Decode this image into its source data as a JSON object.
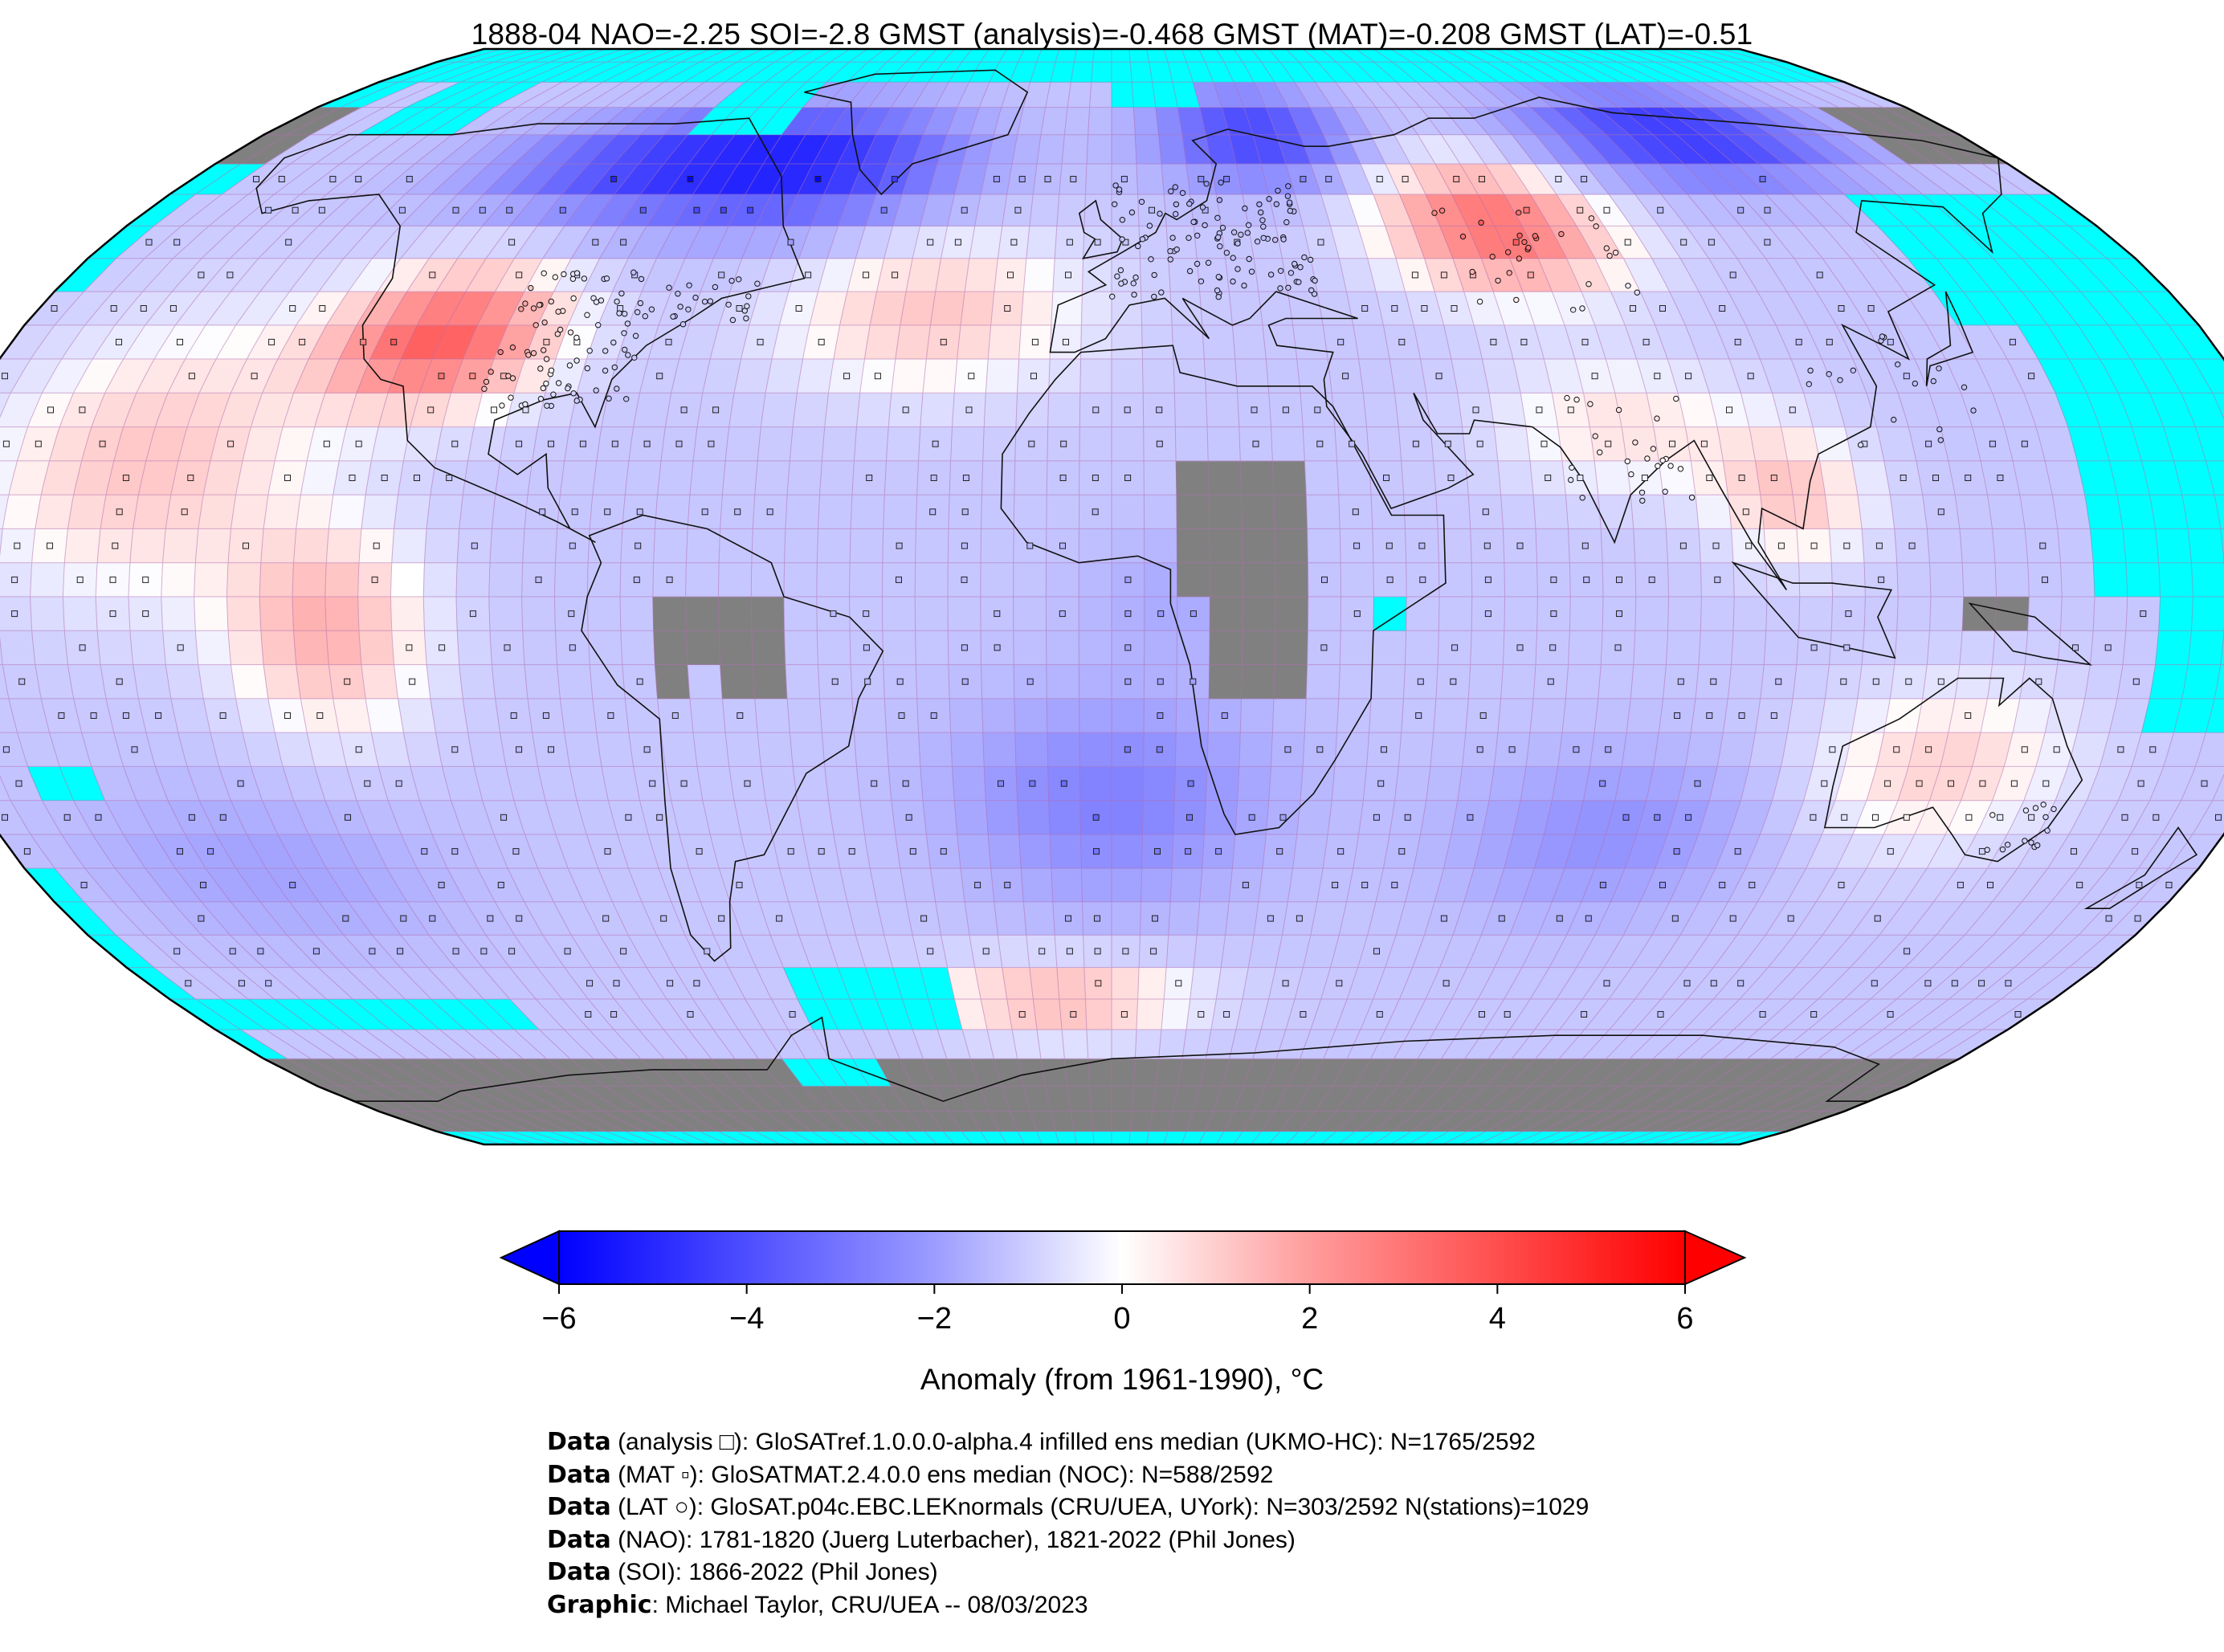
{
  "title": "1888-04 NAO=-2.25 SOI=-2.8 GMST (analysis)=-0.468 GMST (MAT)=-0.208 GMST (LAT)=-0.51",
  "map": {
    "projection": "Robinson",
    "grid_resolution_deg": 5,
    "missing_color": "#00ffff",
    "land_mask_color": "#808080",
    "anomaly_regions": [
      {
        "region": "western North America",
        "anomaly": 3.5
      },
      {
        "region": "central Asia / Siberia",
        "anomaly": 3.0
      },
      {
        "region": "northern Canada / Greenland",
        "anomaly": -4.0
      },
      {
        "region": "northern Siberia",
        "anomaly": -4.5
      },
      {
        "region": "Scandinavia / northern Europe",
        "anomaly": -3.8
      },
      {
        "region": "North Atlantic",
        "anomaly": 1.5
      },
      {
        "region": "South Atlantic",
        "anomaly": -2.5
      },
      {
        "region": "Indian Ocean",
        "anomaly": -1.8
      },
      {
        "region": "eastern tropical Pacific",
        "anomaly": 1.5
      },
      {
        "region": "Australia",
        "anomaly": 1.0
      },
      {
        "region": "Southern Ocean",
        "anomaly": -1.5
      }
    ]
  },
  "colorbar": {
    "label": "Anomaly (from 1961-1990), °C",
    "min": -6,
    "max": 6,
    "extend": "both",
    "ticks": [
      "−6",
      "−4",
      "−2",
      "0",
      "2",
      "4",
      "6"
    ],
    "colors": {
      "low": "#0000ff",
      "mid": "#ffffff",
      "high": "#ff0000"
    }
  },
  "credits": [
    {
      "bold": "Data",
      "text": " (analysis □): GloSATref.1.0.0.0-alpha.4 infilled ens median (UKMO-HC): N=1765/2592"
    },
    {
      "bold": "Data",
      "text": " (MAT ▫): GloSATMAT.2.4.0.0 ens median (NOC): N=588/2592"
    },
    {
      "bold": "Data",
      "text": " (LAT ○): GloSAT.p04c.EBC.LEKnormals (CRU/UEA, UYork): N=303/2592 N(stations)=1029"
    },
    {
      "bold": "Data",
      "text": " (NAO): 1781-1820 (Juerg Luterbacher), 1821-2022 (Phil Jones)"
    },
    {
      "bold": "Data",
      "text": " (SOI): 1866-2022 (Phil Jones)"
    },
    {
      "bold": "Graphic",
      "text": ": Michael Taylor, CRU/UEA -- 08/03/2023"
    }
  ]
}
